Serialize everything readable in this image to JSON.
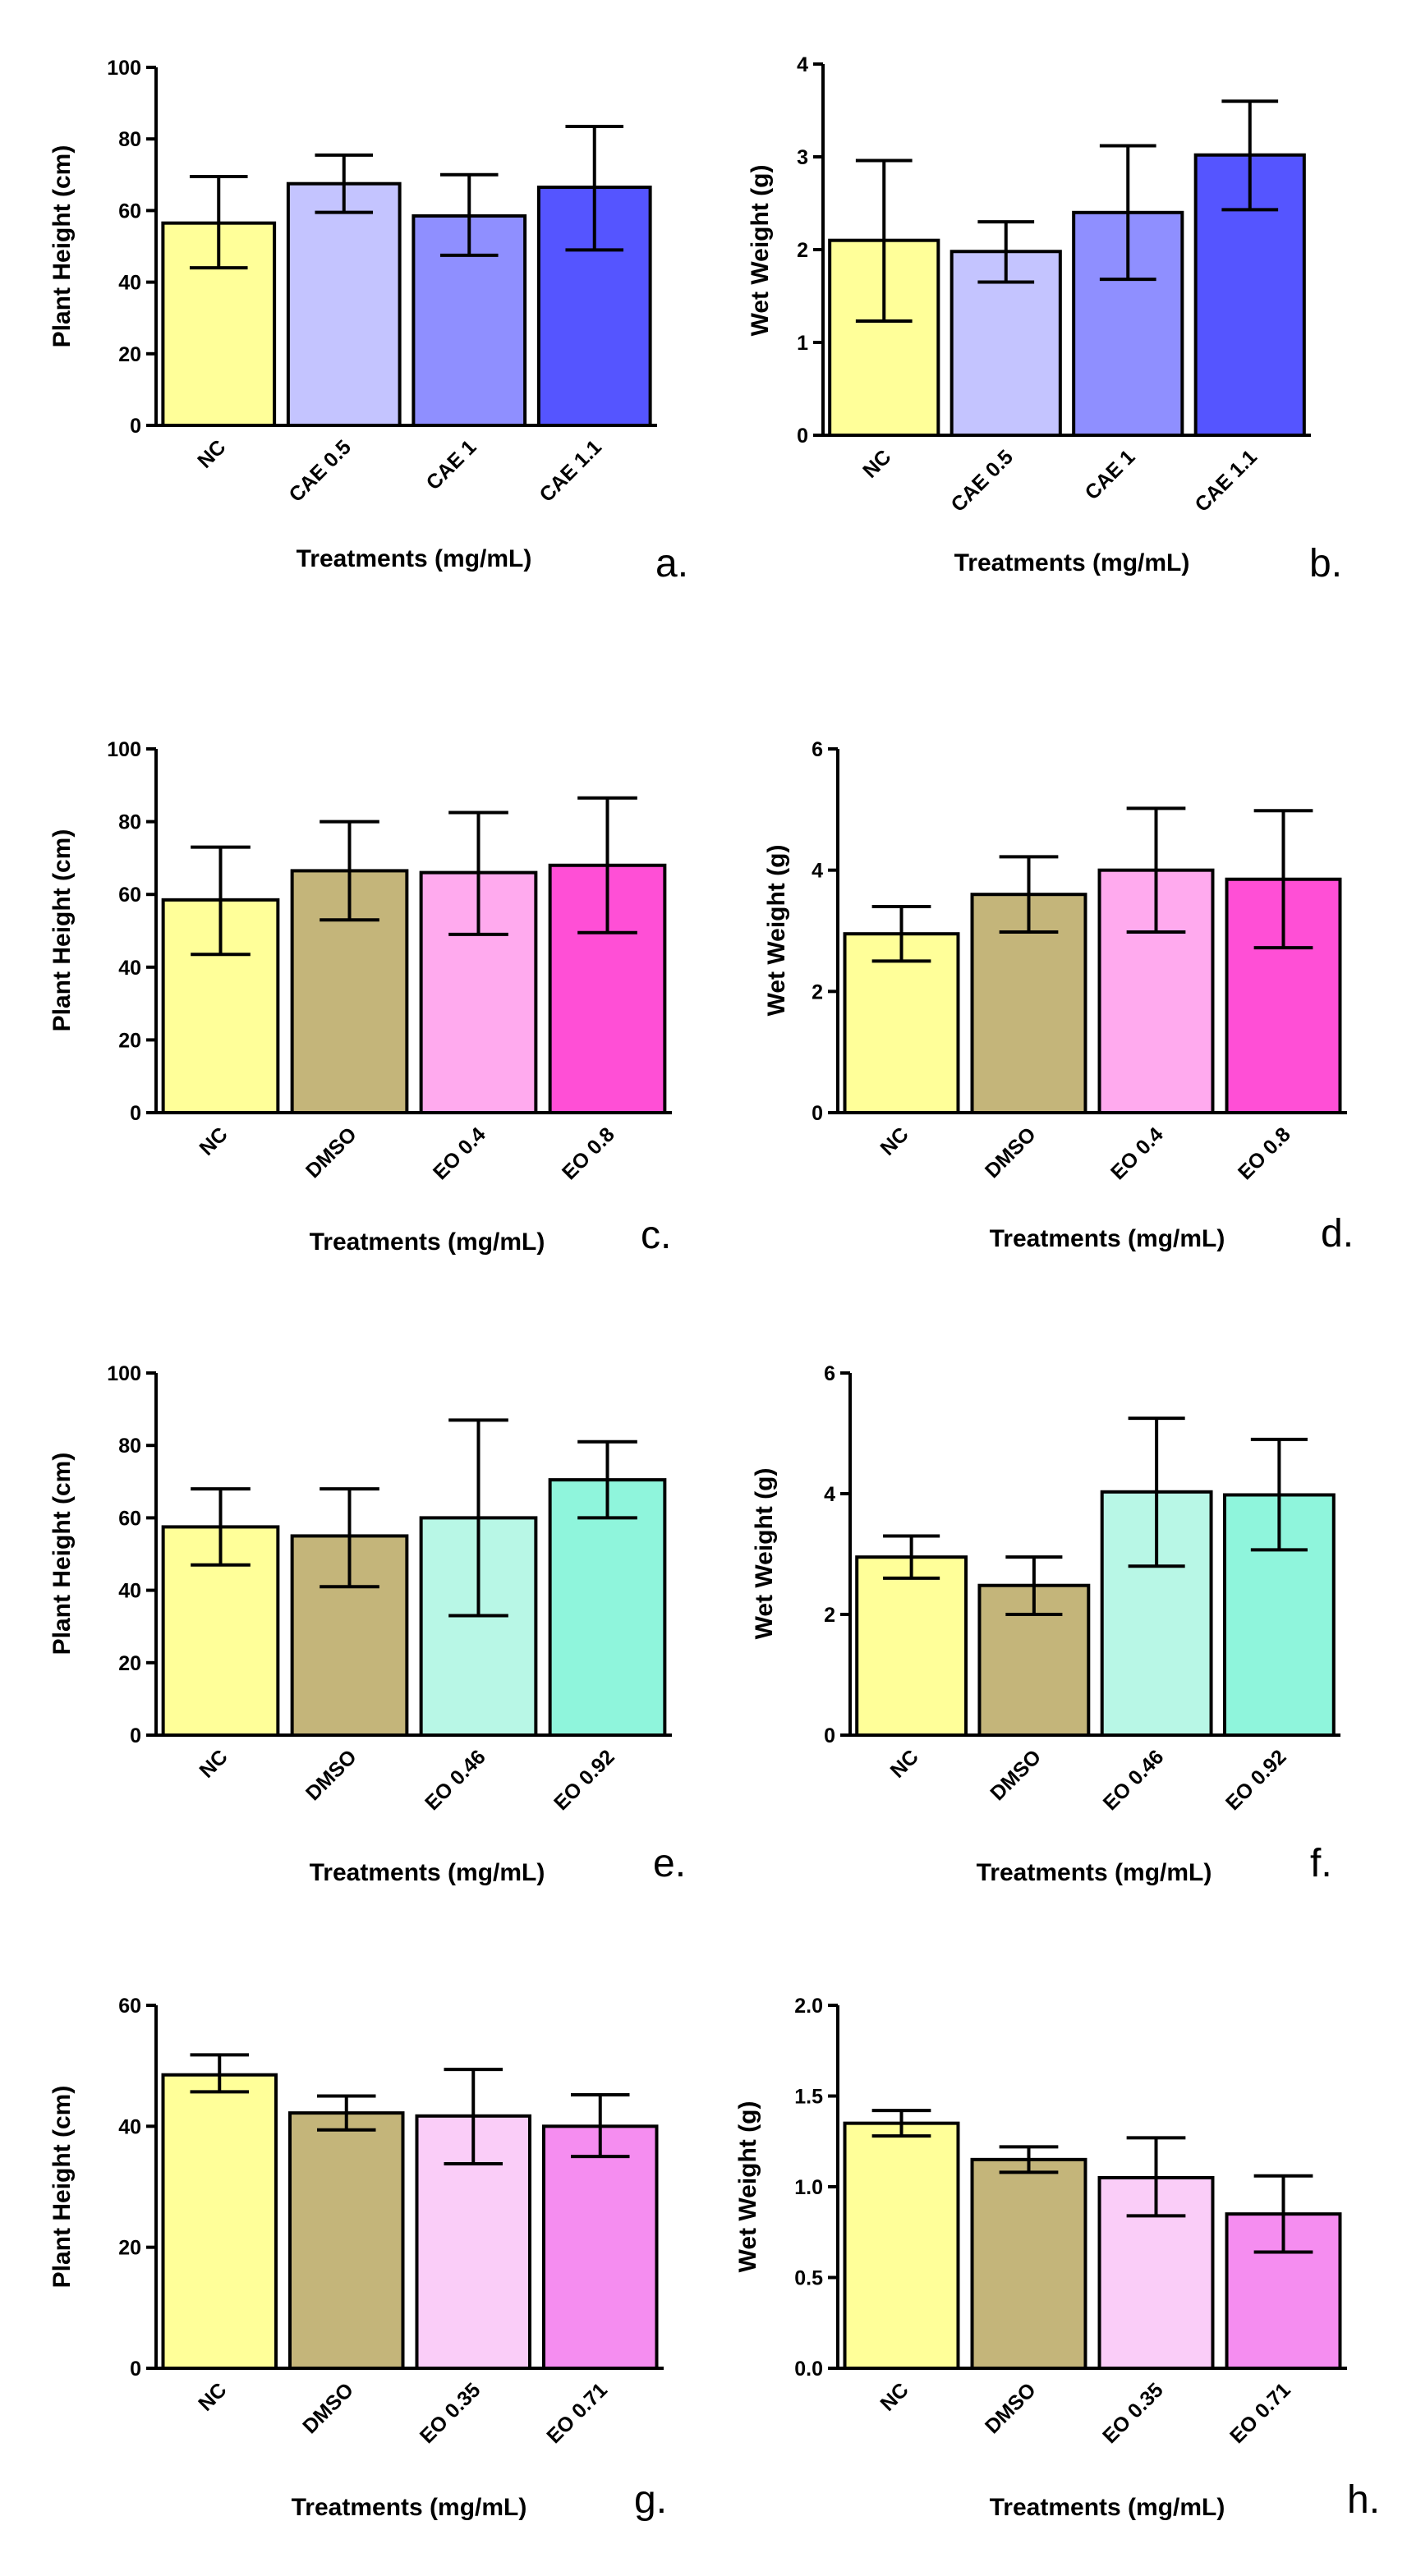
{
  "figure": {
    "background": "#ffffff",
    "axis_color": "#000000"
  },
  "chart_data": [
    {
      "id": "a",
      "type": "bar",
      "panel_label": "a.",
      "xlabel": "Treatments (mg/mL)",
      "ylabel": "Plant Height (cm)",
      "ylim": [
        0,
        100
      ],
      "yticks": [
        0,
        20,
        40,
        60,
        80,
        100
      ],
      "ytick_labels": [
        "0",
        "20",
        "40",
        "60",
        "80",
        "100"
      ],
      "categories": [
        "NC",
        "CAE 0.5",
        "CAE 1",
        "CAE 1.1"
      ],
      "values": [
        56.5,
        67.5,
        58.5,
        66.5
      ],
      "err_low": [
        44,
        59.5,
        47.5,
        49
      ],
      "err_high": [
        69.5,
        75.5,
        70,
        83.5
      ],
      "colors": [
        "#ffff99",
        "#c4c4ff",
        "#8f8fff",
        "#5555ff"
      ]
    },
    {
      "id": "b",
      "type": "bar",
      "panel_label": "b.",
      "xlabel": "Treatments (mg/mL)",
      "ylabel": "Wet Weight (g)",
      "ylim": [
        0,
        4
      ],
      "yticks": [
        0,
        1,
        2,
        3,
        4
      ],
      "ytick_labels": [
        "0",
        "1",
        "2",
        "3",
        "4"
      ],
      "categories": [
        "NC",
        "CAE 0.5",
        "CAE 1",
        "CAE 1.1"
      ],
      "values": [
        2.1,
        1.98,
        2.4,
        3.02
      ],
      "err_low": [
        1.23,
        1.65,
        1.68,
        2.43
      ],
      "err_high": [
        2.96,
        2.3,
        3.12,
        3.6
      ],
      "colors": [
        "#ffff99",
        "#c4c4ff",
        "#8f8fff",
        "#5555ff"
      ]
    },
    {
      "id": "c",
      "type": "bar",
      "panel_label": "c.",
      "xlabel": "Treatments (mg/mL)",
      "ylabel": "Plant Height (cm)",
      "ylim": [
        0,
        100
      ],
      "yticks": [
        0,
        20,
        40,
        60,
        80,
        100
      ],
      "ytick_labels": [
        "0",
        "20",
        "40",
        "60",
        "80",
        "100"
      ],
      "categories": [
        "NC",
        "DMSO",
        "EO 0.4",
        "EO 0.8"
      ],
      "values": [
        58.5,
        66.5,
        66,
        68
      ],
      "err_low": [
        43.5,
        53,
        49,
        49.5
      ],
      "err_high": [
        73,
        80,
        82.5,
        86.5
      ],
      "colors": [
        "#ffff99",
        "#c4b57a",
        "#ffaaee",
        "#ff4fd6"
      ]
    },
    {
      "id": "d",
      "type": "bar",
      "panel_label": "d.",
      "xlabel": "Treatments (mg/mL)",
      "ylabel": "Wet Weight (g)",
      "ylim": [
        0,
        6
      ],
      "yticks": [
        0,
        2,
        4,
        6
      ],
      "ytick_labels": [
        "0",
        "2",
        "4",
        "6"
      ],
      "categories": [
        "NC",
        "DMSO",
        "EO 0.4",
        "EO 0.8"
      ],
      "values": [
        2.95,
        3.6,
        4.0,
        3.85
      ],
      "err_low": [
        2.5,
        2.98,
        2.98,
        2.72
      ],
      "err_high": [
        3.4,
        4.22,
        5.02,
        4.98
      ],
      "colors": [
        "#ffff99",
        "#c4b57a",
        "#ffaaee",
        "#ff4fd6"
      ]
    },
    {
      "id": "e",
      "type": "bar",
      "panel_label": "e.",
      "xlabel": "Treatments (mg/mL)",
      "ylabel": "Plant Height (cm)",
      "ylim": [
        0,
        100
      ],
      "yticks": [
        0,
        20,
        40,
        60,
        80,
        100
      ],
      "ytick_labels": [
        "0",
        "20",
        "40",
        "60",
        "80",
        "100"
      ],
      "categories": [
        "NC",
        "DMSO",
        "EO 0.46",
        "EO 0.92"
      ],
      "values": [
        57.5,
        55,
        60,
        70.5
      ],
      "err_low": [
        47,
        41,
        33,
        60
      ],
      "err_high": [
        68,
        68,
        87,
        81
      ],
      "colors": [
        "#ffff99",
        "#c4b57a",
        "#b8f7e6",
        "#8ff5dc"
      ]
    },
    {
      "id": "f",
      "type": "bar",
      "panel_label": "f.",
      "xlabel": "Treatments (mg/mL)",
      "ylabel": "Wet Weight (g)",
      "ylim": [
        0,
        6
      ],
      "yticks": [
        0,
        2,
        4,
        6
      ],
      "ytick_labels": [
        "0",
        "2",
        "4",
        "6"
      ],
      "categories": [
        "NC",
        "DMSO",
        "EO 0.46",
        "EO 0.92"
      ],
      "values": [
        2.95,
        2.48,
        4.03,
        3.98
      ],
      "err_low": [
        2.6,
        2.0,
        2.8,
        3.07
      ],
      "err_high": [
        3.3,
        2.95,
        5.25,
        4.9
      ],
      "colors": [
        "#ffff99",
        "#c4b57a",
        "#b8f7e6",
        "#8ff5dc"
      ]
    },
    {
      "id": "g",
      "type": "bar",
      "panel_label": "g.",
      "xlabel": "Treatments (mg/mL)",
      "ylabel": "Plant Height (cm)",
      "ylim": [
        0,
        60
      ],
      "yticks": [
        0,
        20,
        40,
        60
      ],
      "ytick_labels": [
        "0",
        "20",
        "40",
        "60"
      ],
      "categories": [
        "NC",
        "DMSO",
        "EO 0.35",
        "EO 0.71"
      ],
      "values": [
        48.5,
        42.2,
        41.7,
        40
      ],
      "err_low": [
        45.7,
        39.4,
        33.8,
        35
      ],
      "err_high": [
        51.8,
        45,
        49.4,
        45.2
      ],
      "colors": [
        "#ffff99",
        "#c4b57a",
        "#facdf8",
        "#f58df0"
      ]
    },
    {
      "id": "h",
      "type": "bar",
      "panel_label": "h.",
      "xlabel": "Treatments (mg/mL)",
      "ylabel": "Wet Weight (g)",
      "ylim": [
        0,
        2
      ],
      "yticks": [
        0,
        0.5,
        1,
        1.5,
        2
      ],
      "ytick_labels": [
        "0.0",
        "0.5",
        "1.0",
        "1.5",
        "2.0"
      ],
      "categories": [
        "NC",
        "DMSO",
        "EO 0.35",
        "EO 0.71"
      ],
      "values": [
        1.35,
        1.15,
        1.05,
        0.85
      ],
      "err_low": [
        1.28,
        1.08,
        0.84,
        0.64
      ],
      "err_high": [
        1.42,
        1.22,
        1.27,
        1.06
      ],
      "colors": [
        "#ffff99",
        "#c4b57a",
        "#facdf8",
        "#f58df0"
      ]
    }
  ]
}
